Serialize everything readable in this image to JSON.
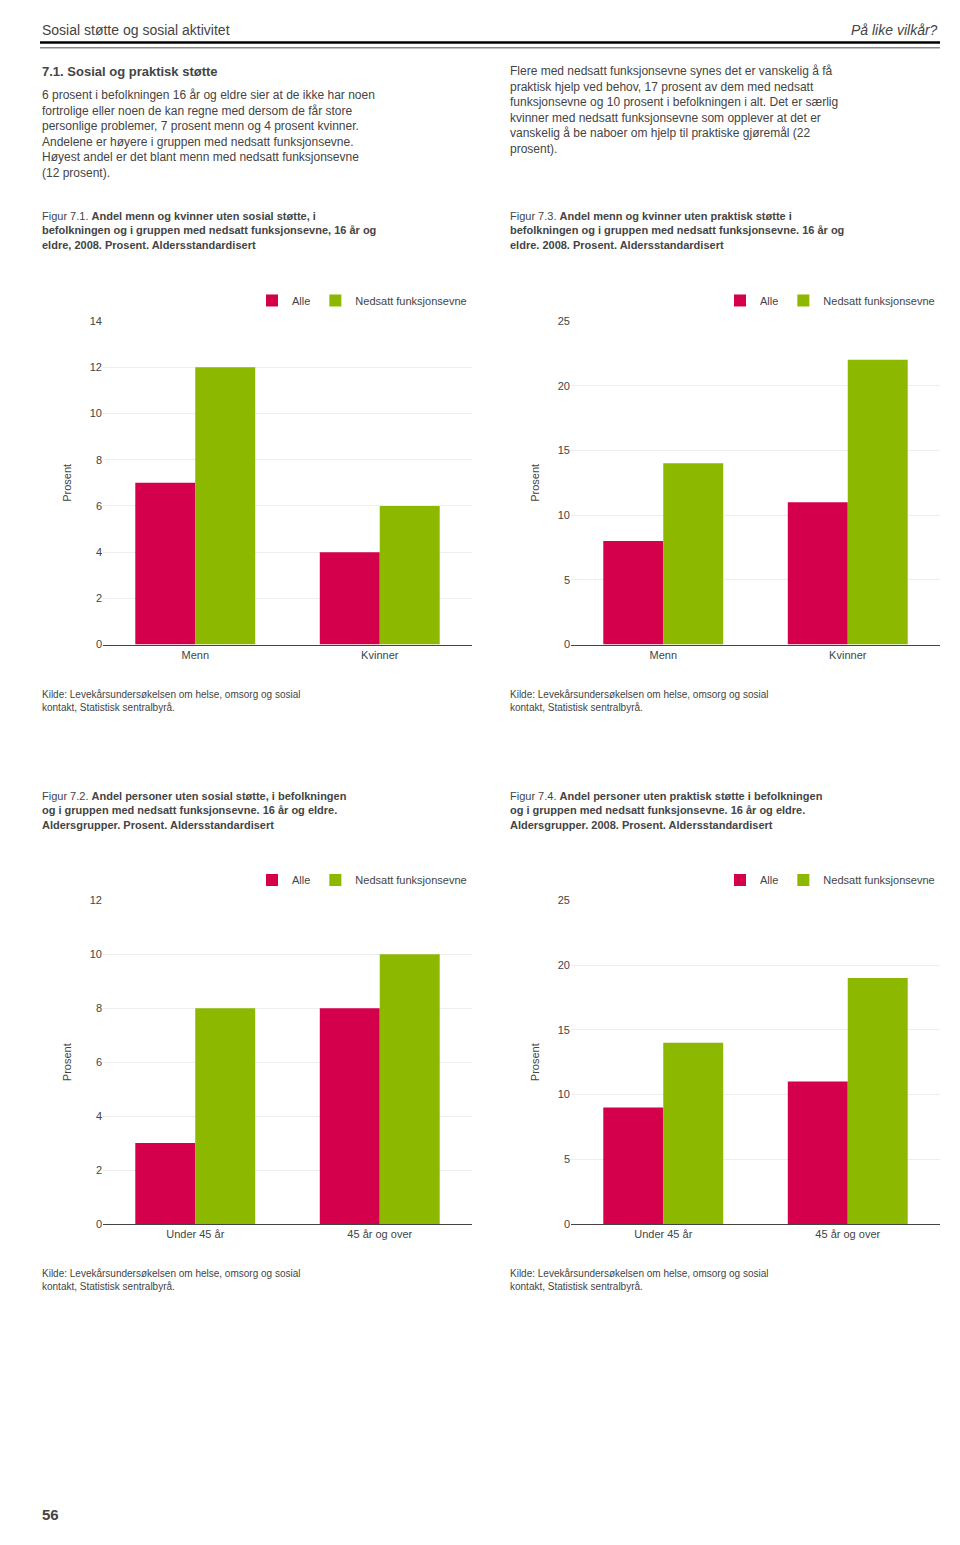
{
  "header_left": "Sosial støtte og sosial aktivitet",
  "header_right": "På like vilkår?",
  "body_left_title": "7.1. Sosial og praktisk støtte",
  "body_left_text": "6 prosent i befolkningen 16 år og eldre sier at de ikke har noen\nfortrolige eller noen de kan regne med dersom de får store\npersonlige problemer, 7 prosent menn og 4 prosent kvinner.\nAndelene er høyere i gruppen med nedsatt funksjonsevne.\nHøyest andel er det blant menn med nedsatt funksjonsevne\n(12 prosent).",
  "body_right_text": "Flere med nedsatt funksjonsevne synes det er vanskelig å få\npraktisk hjelp ved behov, 17 prosent av dem med nedsatt\nfunksjonsevne og 10 prosent i befolkningen i alt. Det er særlig\nkvinner med nedsatt funksjonsevne som opplever at det er\nvanskelig å be naboer om hjelp til praktiske gjøremål (22\nprosent).",
  "page_number": "56",
  "chart_data": [
    {
      "type": "bar",
      "title": "Figur 7.1.",
      "subtitle": "Andel menn og kvinner uten sosial støtte, i befolkningen og i gruppen med nedsatt funksjonsevne, 16 år og eldre, 2008. Prosent. Aldersstandardisert",
      "ylabel": "Prosent",
      "categories": [
        "Menn",
        "Kvinner"
      ],
      "series": [
        {
          "name": "Alle",
          "color": "#d4004b",
          "values": [
            7,
            4
          ]
        },
        {
          "name": "Nedsatt funksjonsevne",
          "color": "#8db800",
          "values": [
            12,
            6
          ]
        }
      ],
      "ylim": [
        0,
        14
      ],
      "yticks": [
        0,
        2,
        4,
        6,
        8,
        10,
        12,
        14
      ],
      "grid": true,
      "legend": "upper right",
      "annotations": [
        "Kilde: Levekårsundersøkelsen om helse, omsorg og sosial\nkontakt, Statistisk sentralbyrå."
      ]
    },
    {
      "type": "bar",
      "title": "Figur 7.3.",
      "subtitle": "Andel menn og kvinner uten praktisk støtte i befolkningen og i gruppen med nedsatt funksjonsevne. 16 år og eldre. 2008. Prosent. Aldersstandardisert",
      "ylabel": "Prosent",
      "categories": [
        "Menn",
        "Kvinner"
      ],
      "series": [
        {
          "name": "Alle",
          "color": "#d4004b",
          "values": [
            8,
            11
          ]
        },
        {
          "name": "Nedsatt funksjonsevne",
          "color": "#8db800",
          "values": [
            14,
            22
          ]
        }
      ],
      "ylim": [
        0,
        25
      ],
      "yticks": [
        0,
        5,
        10,
        15,
        20,
        25
      ],
      "grid": true,
      "legend": "upper right",
      "annotations": [
        "Kilde: Levekårsundersøkelsen om helse, omsorg og sosial\nkontakt, Statistisk sentralbyrå."
      ]
    },
    {
      "type": "bar",
      "title": "Figur 7.2.",
      "subtitle": "Andel personer uten sosial støtte, i befolkningen og i gruppen med nedsatt funksjonsevne. 16 år og eldre. Aldersgrupper. Prosent. Aldersstandardisert",
      "ylabel": "Prosent",
      "categories": [
        "Under 45 år",
        "45 år og over"
      ],
      "series": [
        {
          "name": "Alle",
          "color": "#d4004b",
          "values": [
            3,
            8
          ]
        },
        {
          "name": "Nedsatt funksjonsevne",
          "color": "#8db800",
          "values": [
            8,
            10
          ]
        }
      ],
      "ylim": [
        0,
        12
      ],
      "yticks": [
        0,
        2,
        4,
        6,
        8,
        10,
        12
      ],
      "grid": true,
      "legend": "upper right",
      "annotations": [
        "Kilde: Levekårsundersøkelsen om helse, omsorg og sosial\nkontakt, Statistisk sentralbyrå."
      ]
    },
    {
      "type": "bar",
      "title": "Figur 7.4.",
      "subtitle": "Andel personer uten praktisk støtte i befolkningen og i gruppen med nedsatt funksjonsevne. 16 år og eldre. Aldersgrupper. 2008. Prosent. Aldersstandardisert",
      "ylabel": "Prosent",
      "categories": [
        "Under 45 år",
        "45 år og over"
      ],
      "series": [
        {
          "name": "Alle",
          "color": "#d4004b",
          "values": [
            9,
            11
          ]
        },
        {
          "name": "Nedsatt funksjonsevne",
          "color": "#8db800",
          "values": [
            14,
            19
          ]
        }
      ],
      "ylim": [
        0,
        25
      ],
      "yticks": [
        0,
        5,
        10,
        15,
        20,
        25
      ],
      "grid": true,
      "legend": "upper right",
      "annotations": [
        "Kilde: Levekårsundersøkelsen om helse, omsorg og sosial\nkontakt, Statistisk sentralbyrå."
      ]
    }
  ]
}
